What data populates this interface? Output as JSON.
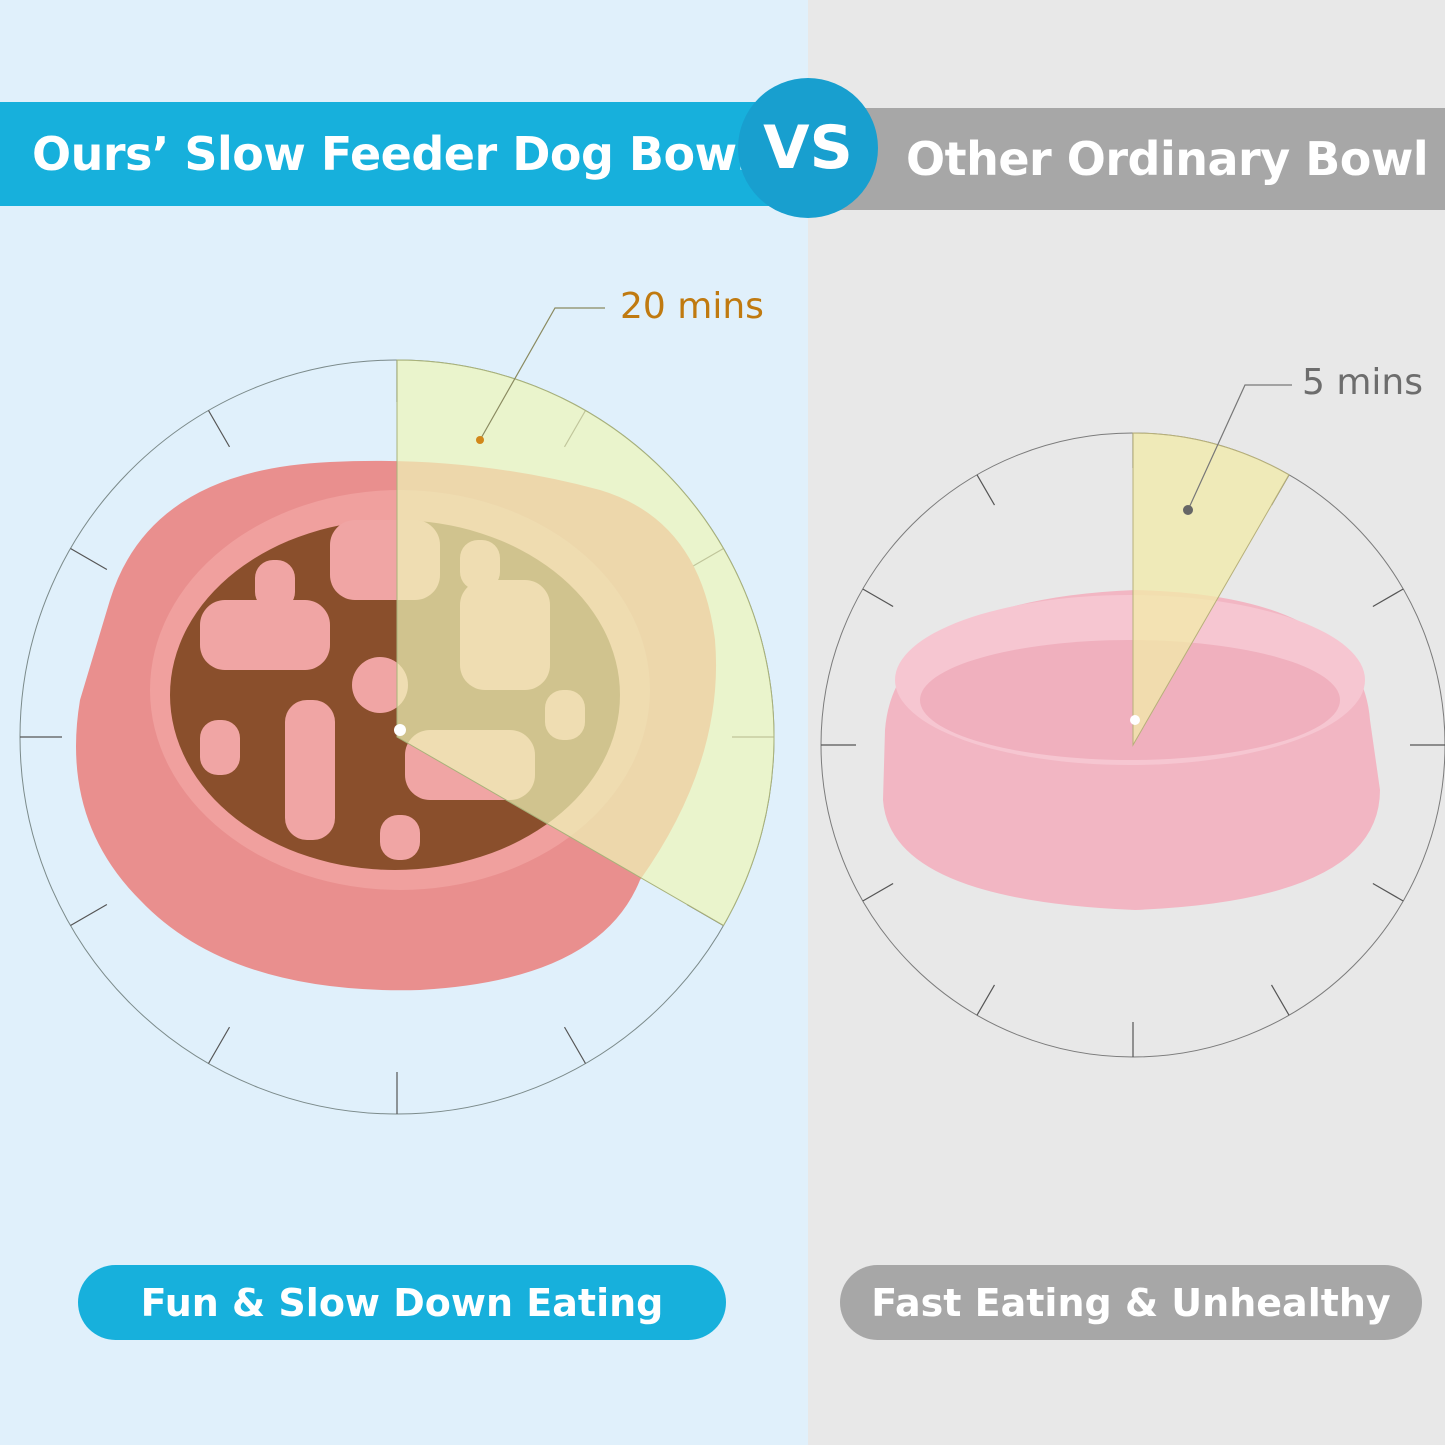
{
  "header": {
    "left_title": "Ours’ Slow Feeder Dog Bowl",
    "vs": "VS",
    "right_title": "Other Ordinary Bowl"
  },
  "left": {
    "time_label": "20 mins",
    "pill": "Fun & Slow Down Eating",
    "accent": "#17b0dc"
  },
  "right": {
    "time_label": "5 mins",
    "pill": "Fast Eating & Unhealthy",
    "accent": "#a7a7a7"
  },
  "colors": {
    "wedge": "#eef5b8",
    "bowl": "#e9908f",
    "ordinary_bowl": "#f2b7c4"
  }
}
